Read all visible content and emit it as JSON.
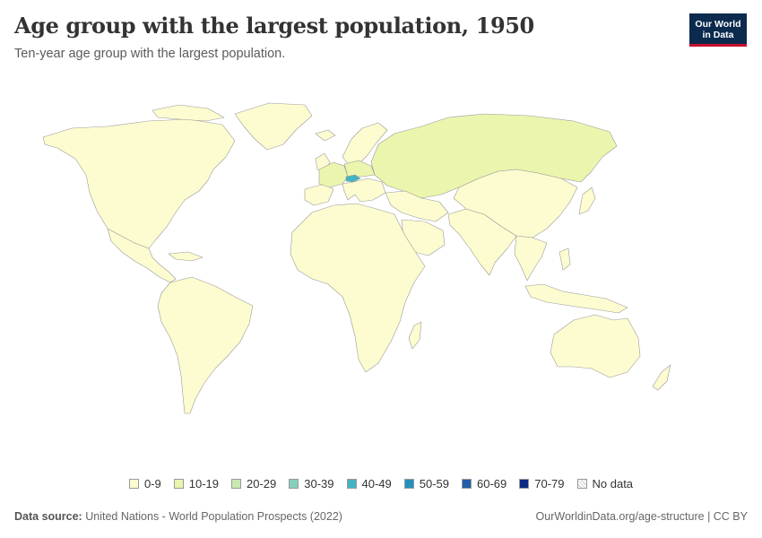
{
  "header": {
    "title": "Age group with the largest population, 1950",
    "subtitle": "Ten-year age group with the largest population."
  },
  "logo": {
    "line1": "Our World",
    "line2": "in Data"
  },
  "map": {
    "year": "1950",
    "colors": {
      "0-9": "#fdfcd0",
      "10-19": "#ebf5ae",
      "20-29": "#c9e8b0",
      "30-39": "#86cfbd",
      "40-49": "#45b4c2",
      "50-59": "#2391bf",
      "60-69": "#225ea8",
      "70-79": "#0c2c84",
      "no_data": "#ffffff"
    },
    "region_values": {
      "north-america": "0-9",
      "greenland": "0-9",
      "mexico-central-america": "0-9",
      "caribbean": "0-9",
      "south-america": "0-9",
      "western-europe": "10-19",
      "scandinavia": "0-9",
      "iberia": "0-9",
      "british-isles": "0-9",
      "central-europe": "10-19",
      "austria": "40-49",
      "balkans": "0-9",
      "ussr": "10-19",
      "africa": "0-9",
      "madagascar": "0-9",
      "middle-east": "0-9",
      "arabia": "0-9",
      "south-asia": "0-9",
      "china-mongolia": "0-9",
      "japan": "0-9",
      "southeast-asia": "0-9",
      "indonesia": "0-9",
      "australia": "0-9",
      "new-zealand": "0-9",
      "iceland": "0-9"
    }
  },
  "legend": {
    "items": [
      {
        "label": "0-9",
        "color": "#fdfcd0"
      },
      {
        "label": "10-19",
        "color": "#ebf5ae"
      },
      {
        "label": "20-29",
        "color": "#c9e8b0"
      },
      {
        "label": "30-39",
        "color": "#86cfbd"
      },
      {
        "label": "40-49",
        "color": "#45b4c2"
      },
      {
        "label": "50-59",
        "color": "#2391bf"
      },
      {
        "label": "60-69",
        "color": "#225ea8"
      },
      {
        "label": "70-79",
        "color": "#0c2c84"
      },
      {
        "label": "No data",
        "color": "#ffffff",
        "hatched": true
      }
    ]
  },
  "footer": {
    "source_label": "Data source:",
    "source_text": "United Nations - World Population Prospects (2022)",
    "link_text": "OurWorldinData.org/age-structure | CC BY"
  }
}
